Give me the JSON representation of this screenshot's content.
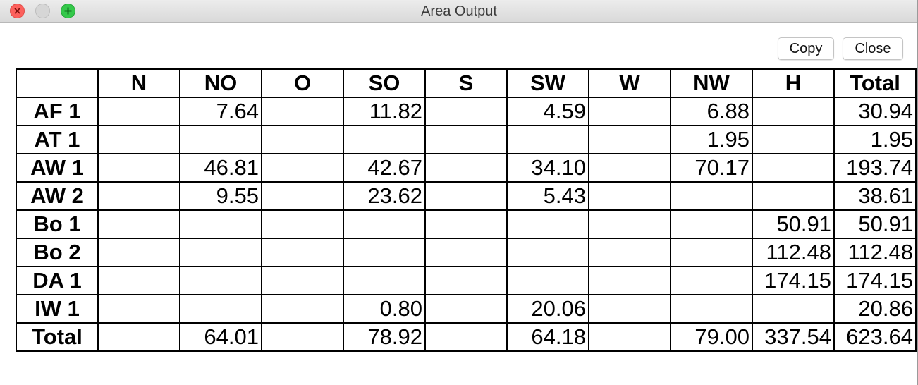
{
  "window": {
    "title": "Area Output"
  },
  "toolbar": {
    "copy_label": "Copy",
    "close_label": "Close"
  },
  "table": {
    "headers": [
      "",
      "N",
      "NO",
      "O",
      "SO",
      "S",
      "SW",
      "W",
      "NW",
      "H",
      "Total"
    ],
    "rows": [
      {
        "label": "AF 1",
        "cells": [
          "",
          "7.64",
          "",
          "11.82",
          "",
          "4.59",
          "",
          "6.88",
          "",
          "30.94"
        ]
      },
      {
        "label": "AT 1",
        "cells": [
          "",
          "",
          "",
          "",
          "",
          "",
          "",
          "1.95",
          "",
          "1.95"
        ]
      },
      {
        "label": "AW 1",
        "cells": [
          "",
          "46.81",
          "",
          "42.67",
          "",
          "34.10",
          "",
          "70.17",
          "",
          "193.74"
        ]
      },
      {
        "label": "AW 2",
        "cells": [
          "",
          "9.55",
          "",
          "23.62",
          "",
          "5.43",
          "",
          "",
          "",
          "38.61"
        ]
      },
      {
        "label": "Bo 1",
        "cells": [
          "",
          "",
          "",
          "",
          "",
          "",
          "",
          "",
          "50.91",
          "50.91"
        ]
      },
      {
        "label": "Bo 2",
        "cells": [
          "",
          "",
          "",
          "",
          "",
          "",
          "",
          "",
          "112.48",
          "112.48"
        ]
      },
      {
        "label": "DA 1",
        "cells": [
          "",
          "",
          "",
          "",
          "",
          "",
          "",
          "",
          "174.15",
          "174.15"
        ]
      },
      {
        "label": "IW 1",
        "cells": [
          "",
          "",
          "",
          "0.80",
          "",
          "20.06",
          "",
          "",
          "",
          "20.86"
        ]
      },
      {
        "label": "Total",
        "cells": [
          "",
          "64.01",
          "",
          "78.92",
          "",
          "64.18",
          "",
          "79.00",
          "337.54",
          "623.64"
        ]
      }
    ]
  }
}
